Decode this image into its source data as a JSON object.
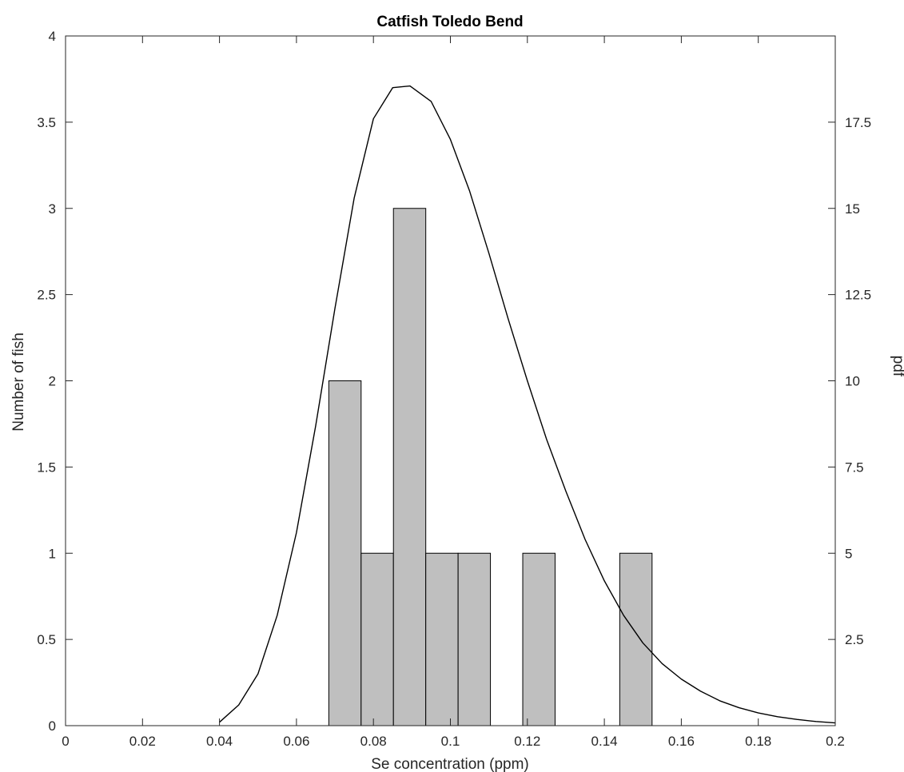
{
  "chart_data": {
    "type": "bar",
    "title": "Catfish Toledo Bend",
    "xlabel": "Se concentration (ppm)",
    "ylabel": "Number of fish",
    "y2label": "pdf",
    "xlim": [
      0,
      0.2
    ],
    "ylim": [
      0,
      4
    ],
    "y2lim": [
      0,
      20
    ],
    "grid": false,
    "x_ticks": [
      0,
      0.02,
      0.04,
      0.06,
      0.08,
      0.1,
      0.12,
      0.14,
      0.16,
      0.18,
      0.2
    ],
    "x_tick_labels": [
      "0",
      "0.02",
      "0.04",
      "0.06",
      "0.08",
      "0.1",
      "0.12",
      "0.14",
      "0.16",
      "0.18",
      "0.2"
    ],
    "y_ticks": [
      0,
      0.5,
      1,
      1.5,
      2,
      2.5,
      3,
      3.5,
      4
    ],
    "y_tick_labels": [
      "0",
      "0.5",
      "1",
      "1.5",
      "2",
      "2.5",
      "3",
      "3.5",
      "4"
    ],
    "y2_ticks": [
      2.5,
      5,
      7.5,
      10,
      12.5,
      15,
      17.5
    ],
    "y2_tick_labels": [
      "2.5",
      "5",
      "7.5",
      "10",
      "12.5",
      "15",
      "17.5"
    ],
    "bars": [
      {
        "x0": 0.0684,
        "x1": 0.0768,
        "count": 2
      },
      {
        "x0": 0.0768,
        "x1": 0.0852,
        "count": 1
      },
      {
        "x0": 0.0852,
        "x1": 0.0936,
        "count": 3
      },
      {
        "x0": 0.0936,
        "x1": 0.102,
        "count": 1
      },
      {
        "x0": 0.102,
        "x1": 0.1104,
        "count": 1
      },
      {
        "x0": 0.1188,
        "x1": 0.1272,
        "count": 1
      },
      {
        "x0": 0.144,
        "x1": 0.1524,
        "count": 1
      }
    ],
    "pdf_curve": {
      "axis": "right",
      "x": [
        0.04,
        0.045,
        0.05,
        0.055,
        0.06,
        0.065,
        0.07,
        0.075,
        0.08,
        0.085,
        0.0895,
        0.095,
        0.1,
        0.105,
        0.11,
        0.115,
        0.12,
        0.125,
        0.13,
        0.135,
        0.14,
        0.145,
        0.15,
        0.155,
        0.16,
        0.165,
        0.17,
        0.175,
        0.18,
        0.185,
        0.19,
        0.195,
        0.2
      ],
      "y": [
        0.1,
        0.6,
        1.5,
        3.2,
        5.6,
        8.7,
        12.1,
        15.3,
        17.6,
        18.5,
        18.55,
        18.1,
        17.0,
        15.5,
        13.7,
        11.8,
        10.0,
        8.3,
        6.8,
        5.4,
        4.2,
        3.2,
        2.4,
        1.8,
        1.35,
        1.0,
        0.72,
        0.52,
        0.37,
        0.26,
        0.18,
        0.12,
        0.08
      ]
    },
    "colors": {
      "bar_fill": "#bfbfbf",
      "bar_edge": "#000000",
      "curve": "#000000",
      "axes": "#262626"
    }
  }
}
